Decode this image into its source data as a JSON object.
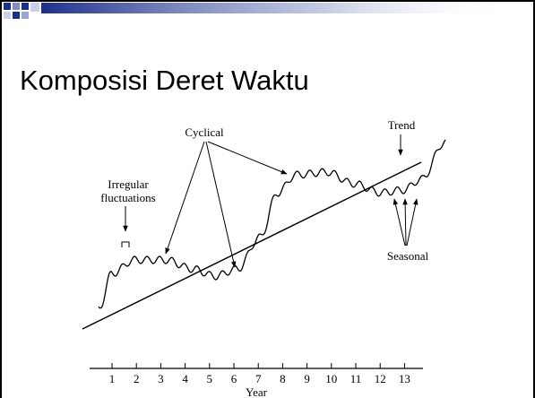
{
  "slide": {
    "title": "Komposisi Deret Waktu"
  },
  "diagram": {
    "labels": {
      "cyclical": "Cyclical",
      "trend": "Trend",
      "irregular_1": "Irregular",
      "irregular_2": "fluctuations",
      "seasonal": "Seasonal"
    },
    "axis": {
      "ticks": [
        "1",
        "2",
        "3",
        "4",
        "5",
        "6",
        "7",
        "8",
        "9",
        "10",
        "11",
        "12",
        "13"
      ],
      "label": "Year"
    }
  }
}
